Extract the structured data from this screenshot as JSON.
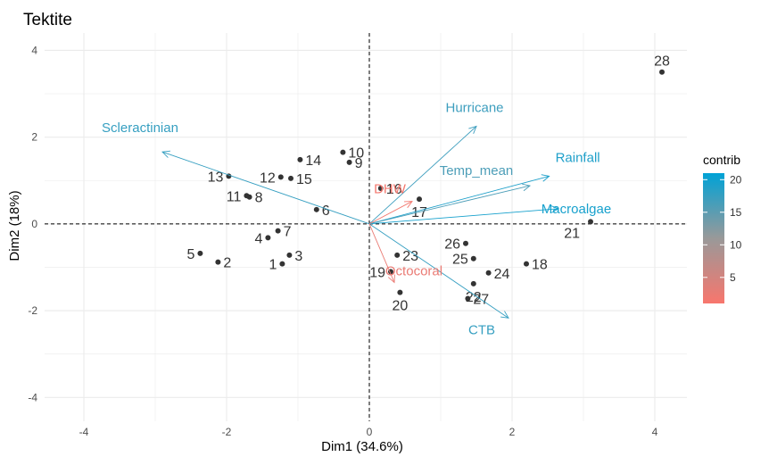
{
  "chart_data": {
    "type": "scatter",
    "title": "Tektite",
    "xlabel": "Dim1 (34.6%)",
    "ylabel": "Dim2 (18%)",
    "xlim": [
      -4.55,
      4.45
    ],
    "ylim": [
      -4.55,
      4.4
    ],
    "xticks": [
      -4,
      -2,
      0,
      2,
      4
    ],
    "yticks": [
      -4,
      -2,
      0,
      2,
      4
    ],
    "x_tick_labels": [
      "-4",
      "-2",
      "0",
      "2",
      "4"
    ],
    "y_tick_labels": [
      "-4",
      "-2",
      "0",
      "2",
      "4"
    ],
    "grid": true,
    "reference_lines": {
      "x": 0,
      "y": 0,
      "style": "dashed"
    },
    "individuals": [
      {
        "label": "1",
        "x": -1.22,
        "y": -0.92
      },
      {
        "label": "2",
        "x": -2.12,
        "y": -0.88
      },
      {
        "label": "3",
        "x": -1.12,
        "y": -0.72
      },
      {
        "label": "4",
        "x": -1.42,
        "y": -0.32
      },
      {
        "label": "5",
        "x": -2.37,
        "y": -0.68
      },
      {
        "label": "6",
        "x": -0.74,
        "y": 0.33
      },
      {
        "label": "7",
        "x": -1.28,
        "y": -0.16
      },
      {
        "label": "8",
        "x": -1.68,
        "y": 0.62
      },
      {
        "label": "9",
        "x": -0.28,
        "y": 1.42
      },
      {
        "label": "10",
        "x": -0.37,
        "y": 1.65
      },
      {
        "label": "11",
        "x": -1.72,
        "y": 0.65
      },
      {
        "label": "12",
        "x": -1.24,
        "y": 1.08
      },
      {
        "label": "13",
        "x": -1.97,
        "y": 1.1
      },
      {
        "label": "14",
        "x": -0.97,
        "y": 1.48
      },
      {
        "label": "15",
        "x": -1.1,
        "y": 1.05
      },
      {
        "label": "16",
        "x": 0.16,
        "y": 0.82
      },
      {
        "label": "17",
        "x": 0.7,
        "y": 0.57
      },
      {
        "label": "18",
        "x": 2.2,
        "y": -0.92
      },
      {
        "label": "19",
        "x": 0.3,
        "y": -1.1
      },
      {
        "label": "20",
        "x": 0.43,
        "y": -1.58
      },
      {
        "label": "21",
        "x": 3.1,
        "y": 0.05
      },
      {
        "label": "22",
        "x": 1.46,
        "y": -1.38
      },
      {
        "label": "23",
        "x": 0.39,
        "y": -0.72
      },
      {
        "label": "24",
        "x": 1.67,
        "y": -1.13
      },
      {
        "label": "25",
        "x": 1.46,
        "y": -0.8
      },
      {
        "label": "26",
        "x": 1.35,
        "y": -0.45
      },
      {
        "label": "27",
        "x": 1.38,
        "y": -1.72
      },
      {
        "label": "28",
        "x": 4.1,
        "y": 3.5
      }
    ],
    "variables": [
      {
        "name": "Scleractinian",
        "x": -2.9,
        "y": 1.66,
        "contrib": 17.5
      },
      {
        "name": "Hurricane",
        "x": 1.5,
        "y": 2.25,
        "contrib": 17
      },
      {
        "name": "Rainfall",
        "x": 2.52,
        "y": 1.1,
        "contrib": 19
      },
      {
        "name": "Temp_mean",
        "x": 2.25,
        "y": 0.88,
        "contrib": 16
      },
      {
        "name": "Macroalgae",
        "x": 2.65,
        "y": 0.35,
        "contrib": 19.5
      },
      {
        "name": "CTB",
        "x": 1.95,
        "y": -2.17,
        "contrib": 17.5
      },
      {
        "name": "DHW",
        "x": 0.6,
        "y": 0.52,
        "contrib": 1.5
      },
      {
        "name": "Octocoral",
        "x": 0.35,
        "y": -1.35,
        "contrib": 2.5
      }
    ],
    "legend": {
      "title": "contrib",
      "position": "right",
      "ticks": [
        5,
        10,
        15,
        20
      ],
      "tick_labels": [
        "5",
        "10",
        "15",
        "20"
      ],
      "range": [
        1,
        21
      ],
      "low_color": "#f8766d",
      "mid_color": "#999999",
      "high_color": "#00a2d6"
    },
    "colors": {
      "points": "#333333",
      "grid": "#ebebeb",
      "reference": "#000000"
    }
  }
}
